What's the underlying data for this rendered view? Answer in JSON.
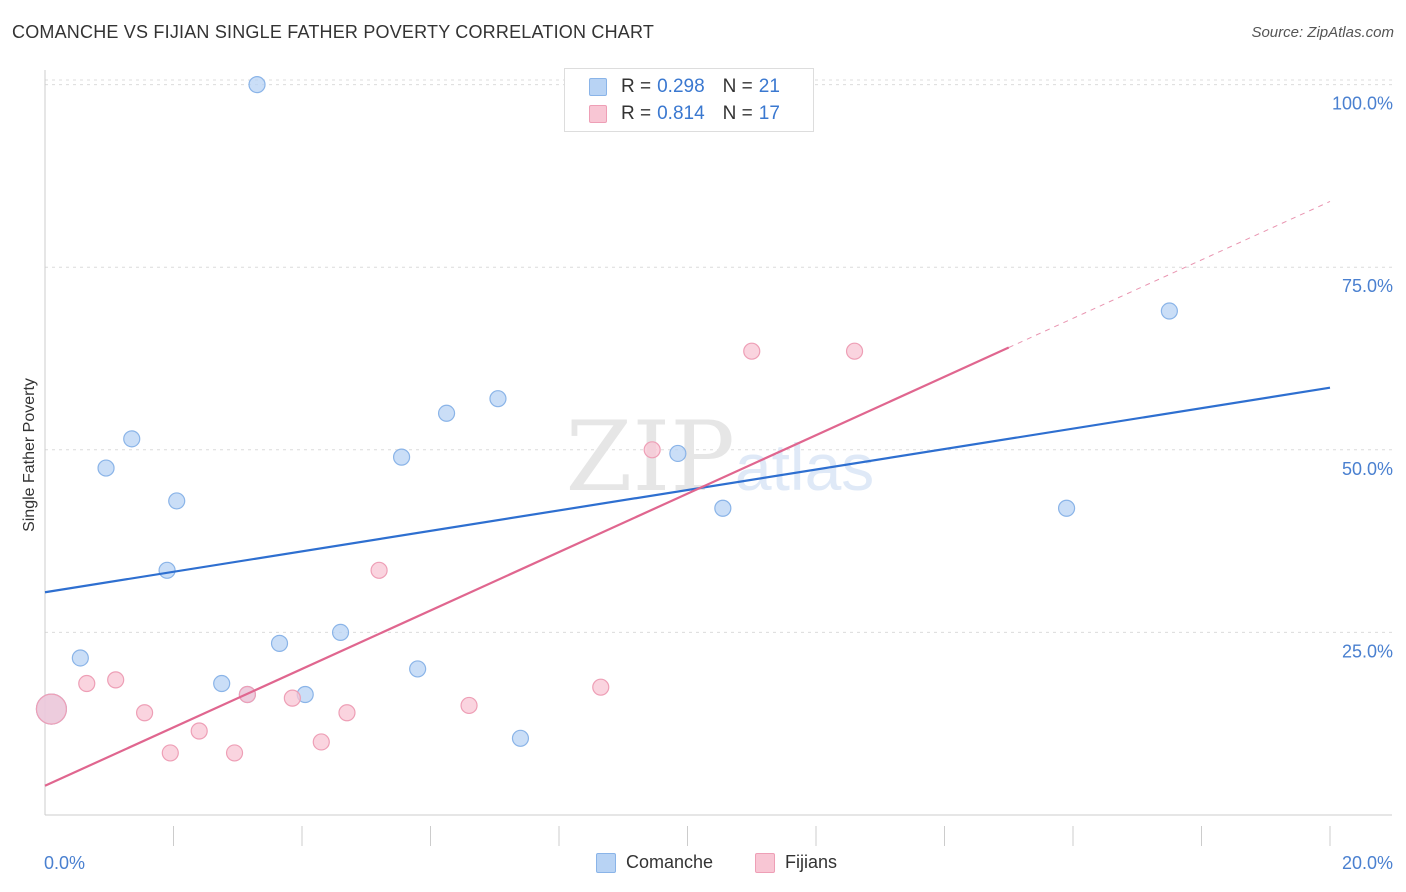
{
  "title": "COMANCHE VS FIJIAN SINGLE FATHER POVERTY CORRELATION CHART",
  "source": "Source: ZipAtlas.com",
  "legend": {
    "rows": [
      {
        "r_label": "R =",
        "r_value": "0.298",
        "n_label": "N =",
        "n_value": "21"
      },
      {
        "r_label": "R =",
        "r_value": "0.814",
        "n_label": "N =",
        "n_value": "17"
      }
    ],
    "series_names": [
      "Comanche",
      "Fijians"
    ]
  },
  "colors": {
    "comanche_fill": "#b8d3f4",
    "comanche_stroke": "#8ab4e8",
    "comanche_line": "#2e6fd0",
    "fijians_fill": "#f8c6d4",
    "fijians_stroke": "#ee9fb6",
    "fijians_line": "#e0668f",
    "tick_text": "#4a80d0"
  },
  "chart_data": {
    "type": "scatter",
    "title": "COMANCHE VS FIJIAN SINGLE FATHER POVERTY CORRELATION CHART",
    "xlabel": "",
    "ylabel": "Single Father Poverty",
    "xlim": [
      0,
      20
    ],
    "ylim": [
      0,
      102
    ],
    "x_tick_labels": [
      "0.0%",
      "20.0%"
    ],
    "y_ticks": [
      25,
      50,
      75,
      100
    ],
    "y_tick_labels": [
      "25.0%",
      "50.0%",
      "75.0%",
      "100.0%"
    ],
    "watermark": "ZIPatlas",
    "series": [
      {
        "name": "Comanche",
        "r": 0.298,
        "n": 21,
        "trend": {
          "x": [
            0,
            20
          ],
          "y": [
            30.5,
            58.5
          ]
        },
        "points": [
          {
            "x": 0.1,
            "y": 14.5,
            "large": true
          },
          {
            "x": 0.55,
            "y": 21.5
          },
          {
            "x": 0.95,
            "y": 47.5
          },
          {
            "x": 1.35,
            "y": 51.5
          },
          {
            "x": 1.9,
            "y": 33.5
          },
          {
            "x": 2.05,
            "y": 43.0
          },
          {
            "x": 2.75,
            "y": 18.0
          },
          {
            "x": 3.15,
            "y": 16.5
          },
          {
            "x": 3.3,
            "y": 100.0
          },
          {
            "x": 3.65,
            "y": 23.5
          },
          {
            "x": 4.05,
            "y": 16.5
          },
          {
            "x": 4.6,
            "y": 25.0
          },
          {
            "x": 5.55,
            "y": 49.0
          },
          {
            "x": 5.8,
            "y": 20.0
          },
          {
            "x": 6.25,
            "y": 55.0
          },
          {
            "x": 7.05,
            "y": 57.0
          },
          {
            "x": 7.4,
            "y": 10.5
          },
          {
            "x": 9.85,
            "y": 49.5
          },
          {
            "x": 10.55,
            "y": 42.0
          },
          {
            "x": 15.9,
            "y": 42.0
          },
          {
            "x": 17.5,
            "y": 69.0
          }
        ]
      },
      {
        "name": "Fijians",
        "r": 0.814,
        "n": 17,
        "trend": {
          "x": [
            0,
            15
          ],
          "y": [
            4.0,
            64.0
          ]
        },
        "trend_dashed": {
          "x": [
            15,
            20
          ],
          "y": [
            64.0,
            84.0
          ]
        },
        "points": [
          {
            "x": 0.1,
            "y": 14.5,
            "large": true
          },
          {
            "x": 0.65,
            "y": 18.0
          },
          {
            "x": 1.1,
            "y": 18.5
          },
          {
            "x": 1.55,
            "y": 14.0
          },
          {
            "x": 1.95,
            "y": 8.5
          },
          {
            "x": 2.4,
            "y": 11.5
          },
          {
            "x": 2.95,
            "y": 8.5
          },
          {
            "x": 3.15,
            "y": 16.5
          },
          {
            "x": 3.85,
            "y": 16.0
          },
          {
            "x": 4.3,
            "y": 10.0
          },
          {
            "x": 4.7,
            "y": 14.0
          },
          {
            "x": 5.2,
            "y": 33.5
          },
          {
            "x": 6.6,
            "y": 15.0
          },
          {
            "x": 8.65,
            "y": 17.5
          },
          {
            "x": 9.45,
            "y": 50.0
          },
          {
            "x": 11.0,
            "y": 63.5
          },
          {
            "x": 12.6,
            "y": 63.5
          }
        ]
      }
    ]
  }
}
